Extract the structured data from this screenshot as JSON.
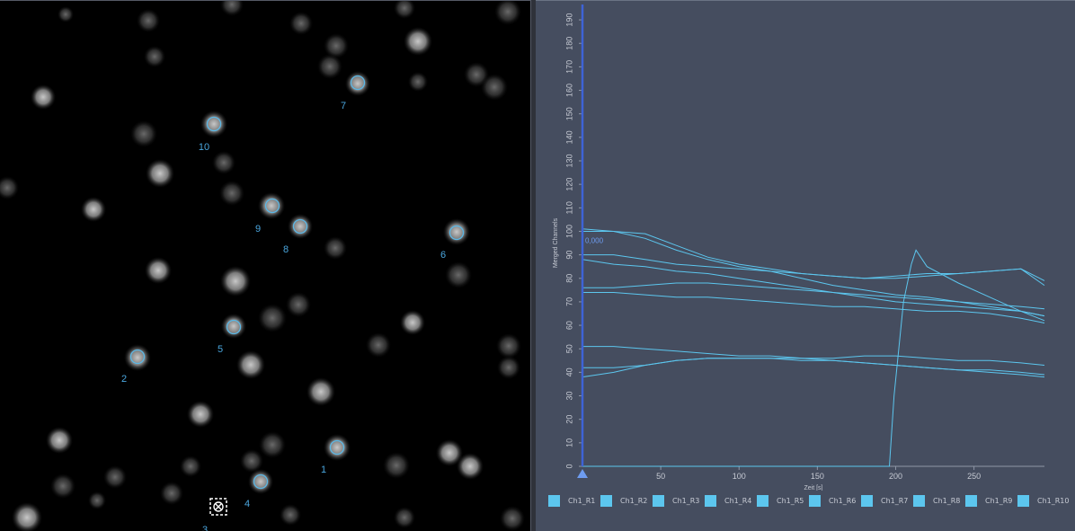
{
  "colors": {
    "roi": "#5bb8e6",
    "roi_label": "#4aa6de",
    "trace": "#5cc6ee",
    "axis": "#3e63d6",
    "chart_bg": "#454d5f",
    "text": "#c6cad3"
  },
  "image_view": {
    "rois": [
      {
        "label": "1"
      },
      {
        "label": "2"
      },
      {
        "label": "3"
      },
      {
        "label": "4"
      },
      {
        "label": "5"
      },
      {
        "label": "6"
      },
      {
        "label": "7"
      },
      {
        "label": "8"
      },
      {
        "label": "9"
      },
      {
        "label": "10"
      }
    ],
    "active_roi_icon": "close-marker-icon"
  },
  "legend": {
    "items": [
      "Ch1_R1",
      "Ch1_R2",
      "Ch1_R3",
      "Ch1_R4",
      "Ch1_R5",
      "Ch1_R6",
      "Ch1_R7",
      "Ch1_R8",
      "Ch1_R9",
      "Ch1_R10"
    ]
  },
  "chart_data": {
    "type": "line",
    "xlabel": "Zeit [s]",
    "ylabel": "Merged Channels",
    "xlim": [
      0,
      295
    ],
    "ylim": [
      0,
      195
    ],
    "x_ticks": [
      "50",
      "100",
      "150",
      "200",
      "250"
    ],
    "x_tick_values": [
      50,
      100,
      150,
      200,
      250
    ],
    "y_ticks": [
      "0",
      "10",
      "20",
      "30",
      "40",
      "50",
      "60",
      "70",
      "80",
      "90",
      "100",
      "110",
      "120",
      "130",
      "140",
      "150",
      "160",
      "170",
      "180",
      "190"
    ],
    "y_tick_values": [
      0,
      10,
      20,
      30,
      40,
      50,
      60,
      70,
      80,
      90,
      100,
      110,
      120,
      130,
      140,
      150,
      160,
      170,
      180,
      190
    ],
    "cursor_label": "0,000",
    "cursor_x": 0,
    "grid": false,
    "legend_position": "bottom",
    "series": [
      {
        "name": "Ch1_R1",
        "x": [
          0,
          20,
          40,
          60,
          80,
          100,
          120,
          140,
          160,
          180,
          200,
          220,
          240,
          260,
          280,
          295
        ],
        "y": [
          100,
          100,
          97,
          92,
          88,
          85,
          83,
          80,
          77,
          75,
          73,
          72,
          70,
          68,
          66,
          64
        ]
      },
      {
        "name": "Ch1_R2",
        "x": [
          0,
          20,
          40,
          60,
          80,
          100,
          120,
          140,
          160,
          180,
          200,
          220,
          240,
          260,
          280,
          295
        ],
        "y": [
          101,
          100,
          99,
          94,
          89,
          86,
          84,
          82,
          81,
          80,
          80,
          81,
          82,
          83,
          84,
          77
        ]
      },
      {
        "name": "Ch1_R3",
        "x": [
          0,
          20,
          40,
          60,
          80,
          100,
          120,
          140,
          160,
          180,
          200,
          220,
          240,
          260,
          280,
          295
        ],
        "y": [
          90,
          90,
          88,
          86,
          85,
          84,
          83,
          82,
          81,
          80,
          81,
          82,
          82,
          83,
          84,
          79
        ]
      },
      {
        "name": "Ch1_R4",
        "x": [
          0,
          20,
          40,
          60,
          80,
          100,
          120,
          140,
          160,
          180,
          200,
          220,
          240,
          260,
          280,
          295
        ],
        "y": [
          88,
          86,
          85,
          83,
          82,
          80,
          78,
          76,
          74,
          72,
          70,
          69,
          68,
          67,
          66,
          64
        ]
      },
      {
        "name": "Ch1_R5",
        "x": [
          0,
          20,
          40,
          60,
          80,
          100,
          120,
          140,
          160,
          180,
          200,
          220,
          240,
          260,
          280,
          295
        ],
        "y": [
          76,
          76,
          77,
          78,
          78,
          77,
          76,
          75,
          74,
          73,
          72,
          71,
          70,
          69,
          68,
          67
        ]
      },
      {
        "name": "Ch1_R6",
        "x": [
          0,
          20,
          40,
          60,
          80,
          100,
          120,
          140,
          160,
          180,
          200,
          220,
          240,
          260,
          280,
          295
        ],
        "y": [
          74,
          74,
          73,
          72,
          72,
          71,
          70,
          69,
          68,
          68,
          67,
          66,
          66,
          65,
          63,
          61
        ]
      },
      {
        "name": "Ch1_R7",
        "x": [
          0,
          20,
          40,
          60,
          80,
          100,
          120,
          140,
          160,
          180,
          200,
          220,
          240,
          260,
          280,
          295
        ],
        "y": [
          51,
          51,
          50,
          49,
          48,
          47,
          47,
          46,
          46,
          47,
          47,
          46,
          45,
          45,
          44,
          43
        ]
      },
      {
        "name": "Ch1_R8",
        "x": [
          0,
          20,
          40,
          60,
          80,
          100,
          120,
          140,
          160,
          180,
          200,
          220,
          240,
          260,
          280,
          295
        ],
        "y": [
          42,
          42,
          43,
          45,
          46,
          46,
          46,
          46,
          45,
          44,
          43,
          42,
          41,
          41,
          40,
          39
        ]
      },
      {
        "name": "Ch1_R9",
        "x": [
          0,
          20,
          40,
          60,
          80,
          100,
          120,
          140,
          160,
          180,
          200,
          220,
          240,
          260,
          280,
          295
        ],
        "y": [
          38,
          40,
          43,
          45,
          46,
          46,
          46,
          45,
          45,
          44,
          43,
          42,
          41,
          40,
          39,
          38
        ]
      },
      {
        "name": "Ch1_R10",
        "x": [
          0,
          190,
          196,
          199,
          205,
          210,
          213,
          220,
          240,
          260,
          280,
          295
        ],
        "y": [
          0,
          0,
          0,
          30,
          70,
          86,
          92,
          85,
          78,
          72,
          66,
          62
        ]
      }
    ]
  }
}
